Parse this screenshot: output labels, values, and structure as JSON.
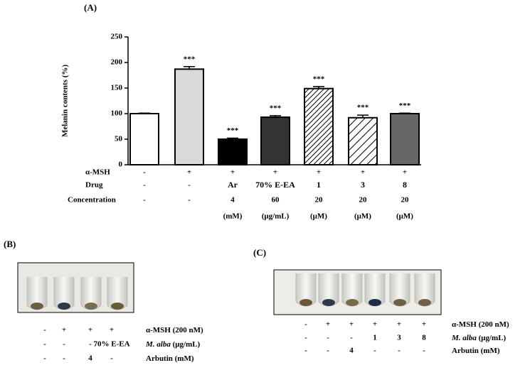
{
  "chart_data": {
    "type": "bar",
    "panel_label": "(A)",
    "ylabel": "Melanin contents (%)",
    "values": [
      100,
      187,
      50,
      93,
      149,
      92,
      100
    ],
    "errors": [
      1,
      5,
      2,
      3,
      4,
      5,
      1
    ],
    "annotations": [
      null,
      "***",
      "***",
      "***",
      "***",
      "***",
      "***"
    ],
    "colors": [
      "#ffffff",
      "#d9d9d9",
      "#000000",
      "#333333",
      "#ffffff",
      "#ffffff",
      "#666666"
    ],
    "hatch": [
      null,
      null,
      null,
      null,
      "dense",
      "sparse",
      null
    ],
    "ylim": [
      0,
      250
    ],
    "yticks": [
      0,
      50,
      100,
      150,
      200,
      250
    ],
    "rows": [
      {
        "label": "α-MSH",
        "cells": [
          "-",
          "+",
          "+",
          "+",
          "+",
          "+",
          "+"
        ]
      },
      {
        "label": "Drug",
        "cells": [
          "-",
          "-",
          "Ar",
          "70% E-EA",
          "1",
          "3",
          "8"
        ]
      },
      {
        "label": "Concentration",
        "cells": [
          "-",
          "-",
          "4",
          "60",
          "20",
          "20",
          "20"
        ]
      }
    ],
    "units": [
      null,
      null,
      "(mM)",
      "(μg/mL)",
      "(μM)",
      "(μM)",
      "(μM)"
    ]
  },
  "panel_b": {
    "label": "(B)",
    "rows": [
      {
        "label": [
          "α-MSH (200 nM)"
        ],
        "cells": [
          "-",
          "+",
          "+",
          "+"
        ]
      },
      {
        "label": [
          "M. alba",
          " (μg/mL)"
        ],
        "cells": [
          "-",
          "-",
          "-",
          "70% E-EA"
        ]
      },
      {
        "label": [
          "Arbutin (mM)"
        ],
        "cells": [
          "-",
          "-",
          "4",
          "-"
        ]
      }
    ]
  },
  "panel_c": {
    "label": "(C)",
    "rows": [
      {
        "label": [
          "α-MSH (200 nM)"
        ],
        "cells": [
          "-",
          "+",
          "+",
          "+",
          "+",
          "+"
        ]
      },
      {
        "label": [
          "M. alba",
          " (μg/mL)"
        ],
        "cells": [
          "-",
          "-",
          "-",
          "1",
          "3",
          "8"
        ]
      },
      {
        "label": [
          "Arbutin (mM)"
        ],
        "cells": [
          "-",
          "-",
          "4",
          "-",
          "-",
          "-"
        ]
      }
    ]
  }
}
